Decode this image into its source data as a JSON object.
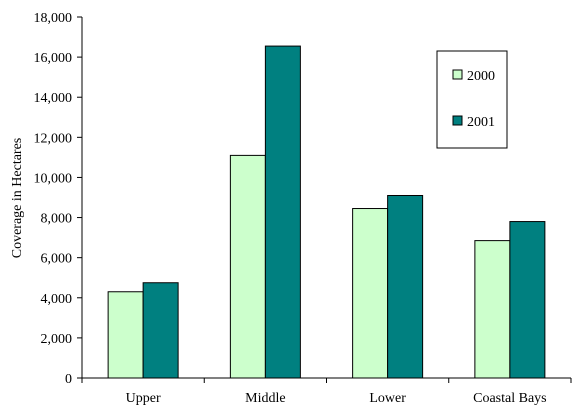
{
  "chart_data": {
    "type": "bar",
    "title": "",
    "xlabel": "",
    "ylabel": "Coverage in Hectares",
    "categories": [
      "Upper",
      "Middle",
      "Lower",
      "Coastal Bays"
    ],
    "series": [
      {
        "name": "2000",
        "values": [
          4300,
          11100,
          8450,
          6850
        ],
        "color": "#ccffcc"
      },
      {
        "name": "2001",
        "values": [
          4750,
          16550,
          9100,
          7800
        ],
        "color": "#008080"
      }
    ],
    "ylim": [
      0,
      18000
    ],
    "yticks": [
      0,
      2000,
      4000,
      6000,
      8000,
      10000,
      12000,
      14000,
      16000,
      18000
    ],
    "ytick_labels": [
      "0",
      "2,000",
      "4,000",
      "6,000",
      "8,000",
      "10,000",
      "12,000",
      "14,000",
      "16,000",
      "18,000"
    ],
    "grid": false,
    "legend_position": "top-right"
  }
}
